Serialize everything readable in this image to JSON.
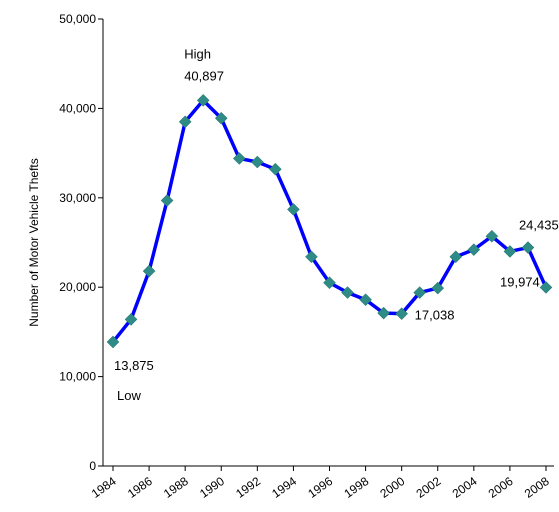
{
  "chart_data": {
    "type": "line",
    "title": "",
    "xlabel": "",
    "ylabel": "Number of Motor Vehicle Thefts",
    "ylim": [
      0,
      50000
    ],
    "xlim": [
      1984,
      2008
    ],
    "grid": false,
    "legend": "none",
    "y_ticks": [
      {
        "value": 0,
        "label": "0"
      },
      {
        "value": 10000,
        "label": "10,000"
      },
      {
        "value": 20000,
        "label": "20,000"
      },
      {
        "value": 30000,
        "label": "30,000"
      },
      {
        "value": 40000,
        "label": "40,000"
      },
      {
        "value": 50000,
        "label": "50,000"
      }
    ],
    "x_ticks": [
      {
        "value": 1984,
        "label": "1984"
      },
      {
        "value": 1986,
        "label": "1986"
      },
      {
        "value": 1988,
        "label": "1988"
      },
      {
        "value": 1990,
        "label": "1990"
      },
      {
        "value": 1992,
        "label": "1992"
      },
      {
        "value": 1994,
        "label": "1994"
      },
      {
        "value": 1996,
        "label": "1996"
      },
      {
        "value": 1998,
        "label": "1998"
      },
      {
        "value": 2000,
        "label": "2000"
      },
      {
        "value": 2002,
        "label": "2002"
      },
      {
        "value": 2004,
        "label": "2004"
      },
      {
        "value": 2006,
        "label": "2006"
      },
      {
        "value": 2008,
        "label": "2008"
      }
    ],
    "series": [
      {
        "line_color": "#0000ff",
        "marker_color": "#2e8b85",
        "x": [
          1984,
          1985,
          1986,
          1987,
          1988,
          1989,
          1990,
          1991,
          1992,
          1993,
          1994,
          1995,
          1996,
          1997,
          1998,
          1999,
          2000,
          2001,
          2002,
          2003,
          2004,
          2005,
          2006,
          2007,
          2008
        ],
        "values": [
          13875,
          16400,
          21800,
          29700,
          38500,
          40897,
          38900,
          34400,
          34000,
          33200,
          28700,
          23400,
          20500,
          19400,
          18600,
          17100,
          17038,
          19400,
          19900,
          23400,
          24200,
          25700,
          24000,
          24435,
          19974
        ]
      }
    ],
    "annotations": [
      {
        "text": "High",
        "x": 1989,
        "y": 40897,
        "pos": "above-high"
      },
      {
        "text": "40,897",
        "x": 1989,
        "y": 40897,
        "pos": "above"
      },
      {
        "text": "13,875",
        "x": 1984,
        "y": 13875,
        "pos": "below"
      },
      {
        "text": "Low",
        "x": 1984,
        "y": 13875,
        "pos": "below-low"
      },
      {
        "text": "17,038",
        "x": 2000,
        "y": 17038,
        "pos": "right"
      },
      {
        "text": "24,435",
        "x": 2007,
        "y": 24435,
        "pos": "above"
      },
      {
        "text": "19,974",
        "x": 2008,
        "y": 19974,
        "pos": "below-left"
      }
    ]
  }
}
